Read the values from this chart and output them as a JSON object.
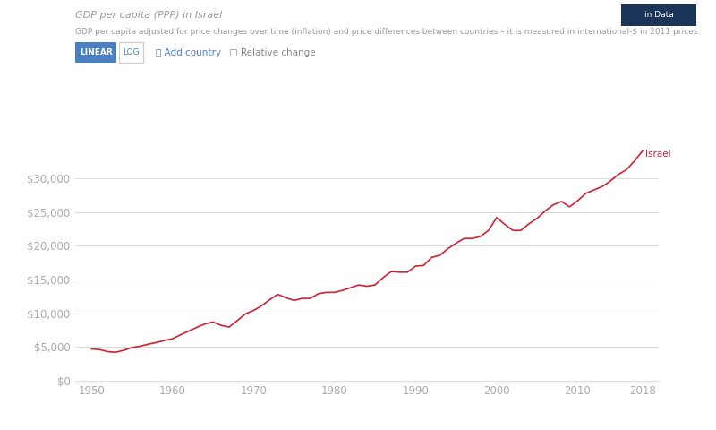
{
  "title": "GDP per capita (PPP) in Israel",
  "subtitle": "GDP per capita adjusted for price changes over time (inflation) and price differences between countries – it is measured in international-$ in 2011 prices.",
  "line_color": "#cc2233",
  "background_color": "#ffffff",
  "grid_color": "#dddddd",
  "label_color": "#aaaaaa",
  "years": [
    1950,
    1951,
    1952,
    1953,
    1954,
    1955,
    1956,
    1957,
    1958,
    1959,
    1960,
    1961,
    1962,
    1963,
    1964,
    1965,
    1966,
    1967,
    1968,
    1969,
    1970,
    1971,
    1972,
    1973,
    1974,
    1975,
    1976,
    1977,
    1978,
    1979,
    1980,
    1981,
    1982,
    1983,
    1984,
    1985,
    1986,
    1987,
    1988,
    1989,
    1990,
    1991,
    1992,
    1993,
    1994,
    1995,
    1996,
    1997,
    1998,
    1999,
    2000,
    2001,
    2002,
    2003,
    2004,
    2005,
    2006,
    2007,
    2008,
    2009,
    2010,
    2011,
    2012,
    2013,
    2014,
    2015,
    2016,
    2017,
    2018
  ],
  "values": [
    4700,
    4600,
    4300,
    4200,
    4500,
    4900,
    5100,
    5400,
    5650,
    5950,
    6200,
    6800,
    7350,
    7900,
    8400,
    8700,
    8200,
    7950,
    8900,
    9900,
    10400,
    11100,
    12000,
    12800,
    12300,
    11900,
    12200,
    12200,
    12900,
    13100,
    13100,
    13400,
    13800,
    14200,
    14000,
    14200,
    15300,
    16200,
    16100,
    16100,
    17000,
    17100,
    18300,
    18600,
    19600,
    20400,
    21100,
    21100,
    21400,
    22300,
    24200,
    23200,
    22300,
    22300,
    23300,
    24100,
    25200,
    26100,
    26600,
    25800,
    26700,
    27800,
    28300,
    28800,
    29600,
    30600,
    31300,
    32600,
    34100
  ],
  "xlim": [
    1948,
    2020
  ],
  "ylim": [
    0,
    38000
  ],
  "yticks": [
    0,
    5000,
    10000,
    15000,
    20000,
    25000,
    30000
  ],
  "xticks": [
    1950,
    1960,
    1970,
    1980,
    1990,
    2000,
    2010,
    2018
  ],
  "israel_label": "Israel",
  "israel_label_color": "#cc2233",
  "badge_color": "#1a3558",
  "badge_text": "in Data",
  "button_linear_bg": "#4a7fc1",
  "button_log_text": "#4a7fc1"
}
